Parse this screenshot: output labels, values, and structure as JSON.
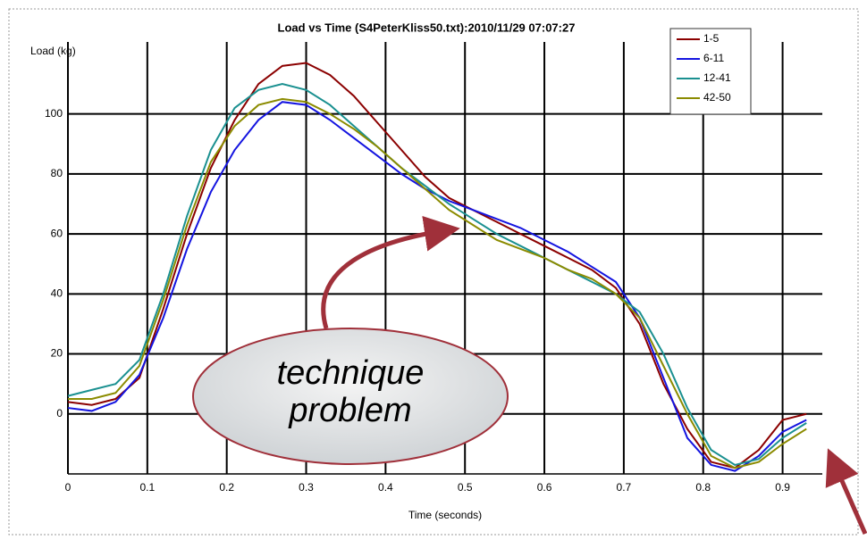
{
  "chart_data": {
    "type": "line",
    "title": "Load vs Time (S4PeterKliss50.txt):2010/11/29 07:07:27",
    "xlabel": "Time (seconds)",
    "ylabel": "Load (kg)",
    "x": [
      0,
      0.03,
      0.06,
      0.09,
      0.12,
      0.15,
      0.18,
      0.21,
      0.24,
      0.27,
      0.3,
      0.33,
      0.36,
      0.39,
      0.42,
      0.45,
      0.48,
      0.51,
      0.54,
      0.57,
      0.6,
      0.63,
      0.66,
      0.69,
      0.72,
      0.75,
      0.78,
      0.81,
      0.84,
      0.87,
      0.9,
      0.93
    ],
    "series": [
      {
        "name": "1-5",
        "color": "#8b0000",
        "values": [
          4,
          3,
          5,
          12,
          35,
          60,
          82,
          98,
          110,
          116,
          117,
          113,
          106,
          97,
          88,
          79,
          72,
          68,
          64,
          60,
          56,
          52,
          48,
          42,
          30,
          10,
          -5,
          -16,
          -18,
          -12,
          -2,
          0
        ]
      },
      {
        "name": "6-11",
        "color": "#1414e0",
        "values": [
          2,
          1,
          4,
          13,
          32,
          55,
          74,
          88,
          98,
          104,
          103,
          98,
          92,
          86,
          80,
          75,
          71,
          68,
          65,
          62,
          58,
          54,
          49,
          44,
          32,
          12,
          -8,
          -17,
          -19,
          -14,
          -6,
          -2
        ]
      },
      {
        "name": "12-41",
        "color": "#1a9090",
        "values": [
          6,
          8,
          10,
          18,
          40,
          66,
          88,
          102,
          108,
          110,
          108,
          103,
          96,
          89,
          82,
          76,
          70,
          65,
          60,
          56,
          52,
          48,
          44,
          40,
          34,
          20,
          2,
          -12,
          -17,
          -15,
          -8,
          -3
        ]
      },
      {
        "name": "42-50",
        "color": "#8b8b00",
        "values": [
          5,
          5,
          7,
          16,
          38,
          63,
          84,
          96,
          103,
          105,
          104,
          100,
          95,
          89,
          82,
          75,
          68,
          63,
          58,
          55,
          52,
          48,
          45,
          40,
          32,
          16,
          0,
          -14,
          -18,
          -16,
          -10,
          -5
        ]
      }
    ],
    "xlim": [
      0,
      0.95
    ],
    "xticks": [
      0,
      0.1,
      0.2,
      0.3,
      0.4,
      0.5,
      0.6,
      0.7,
      0.8,
      0.9
    ],
    "ylim": [
      -20,
      124
    ],
    "yticks": [
      0,
      20,
      40,
      60,
      80,
      100
    ],
    "grid": true,
    "legend": "upper right",
    "annotation": [
      "technique",
      "problem"
    ]
  }
}
